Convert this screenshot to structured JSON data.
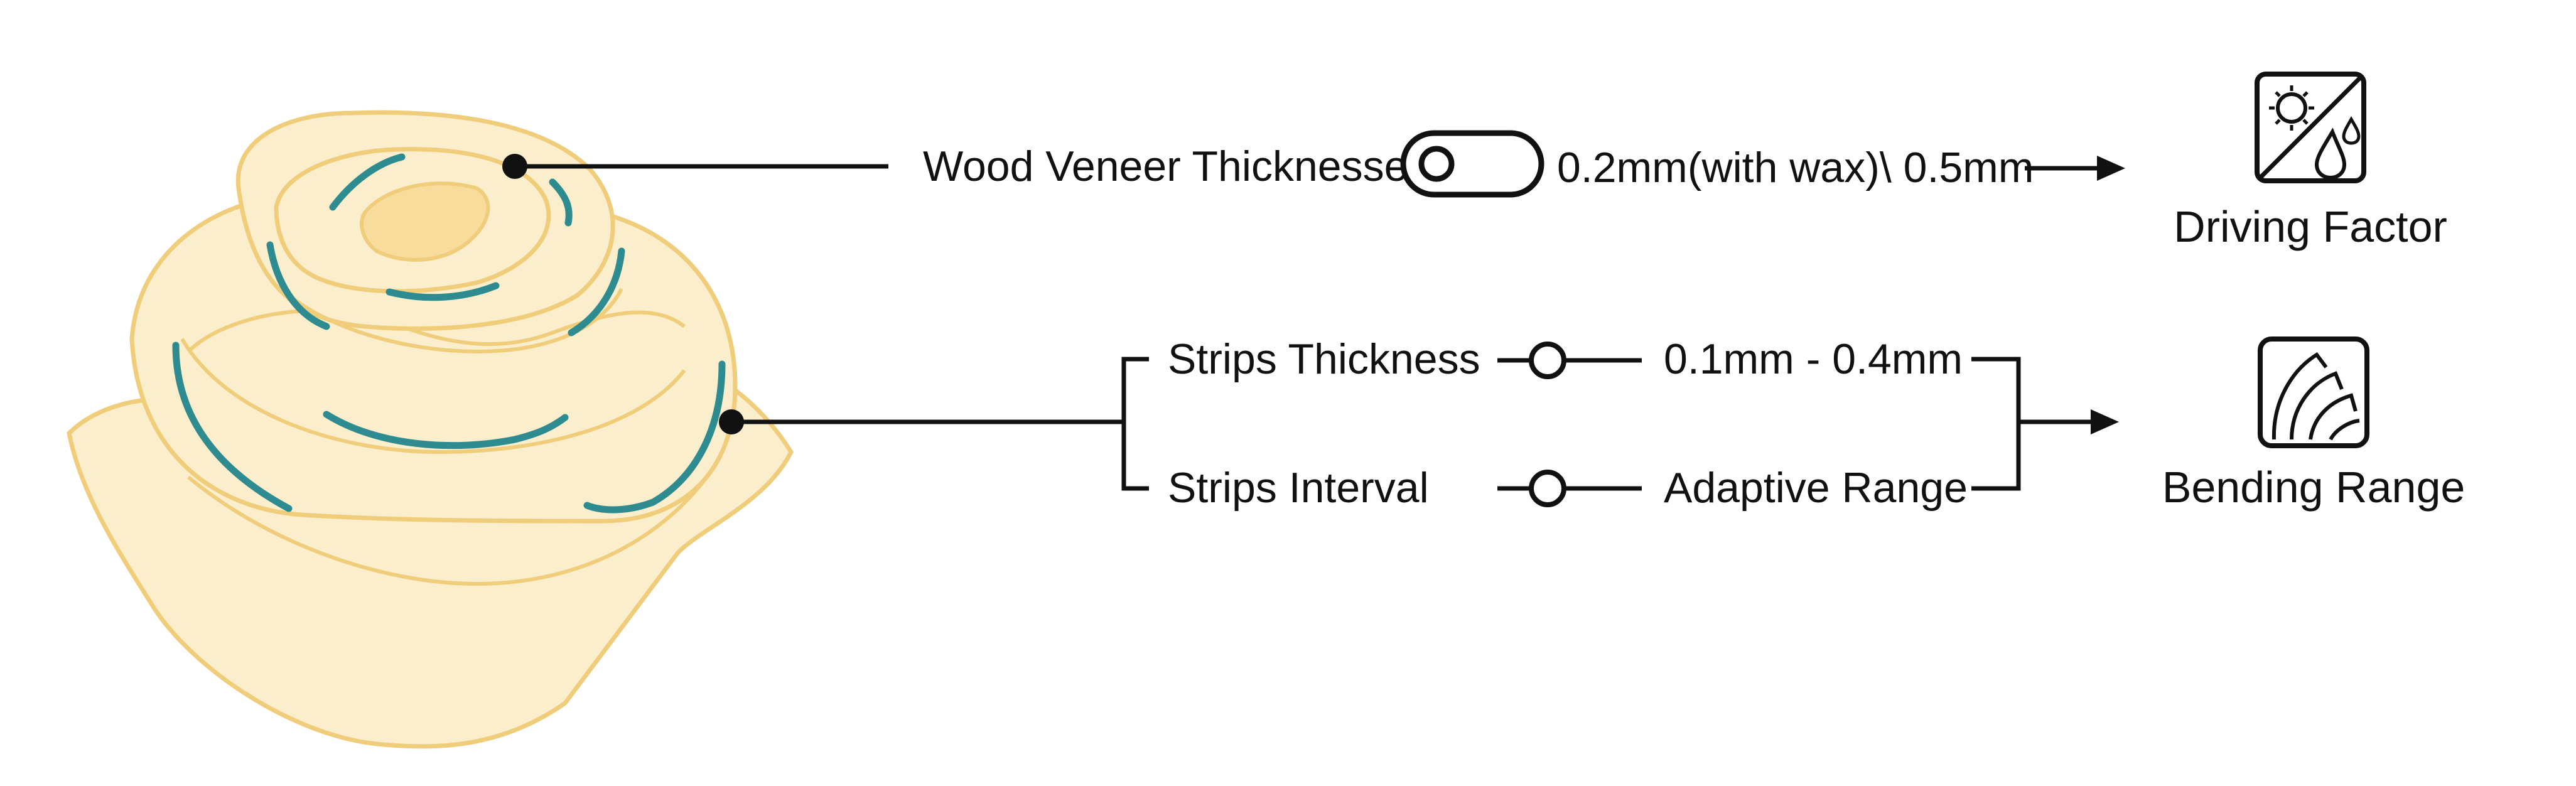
{
  "diagram": {
    "wood_label": "Wood Veneer Thicknesses",
    "wood_value": "0.2mm(with wax)\\ 0.5mm",
    "strips_thickness_label": "Strips Thickness",
    "strips_thickness_value": "0.1mm - 0.4mm",
    "strips_interval_label": "Strips Interval",
    "strips_interval_value": "Adaptive Range",
    "driving_factor_label": "Driving Factor",
    "bending_range_label": "Bending Range"
  },
  "icons": {
    "illustration": "wooden-rose-illustration",
    "toggle": "toggle-switch-icon",
    "slider": "slider-knob-icon",
    "driving_factor": "sun-and-water-drop-icon",
    "bending_range": "bending-strips-icon"
  },
  "colors": {
    "wood_fill": "#faeecc",
    "wood_stroke": "#f0cd7a",
    "strip_teal": "#2e8b8f",
    "ink": "#111111"
  }
}
